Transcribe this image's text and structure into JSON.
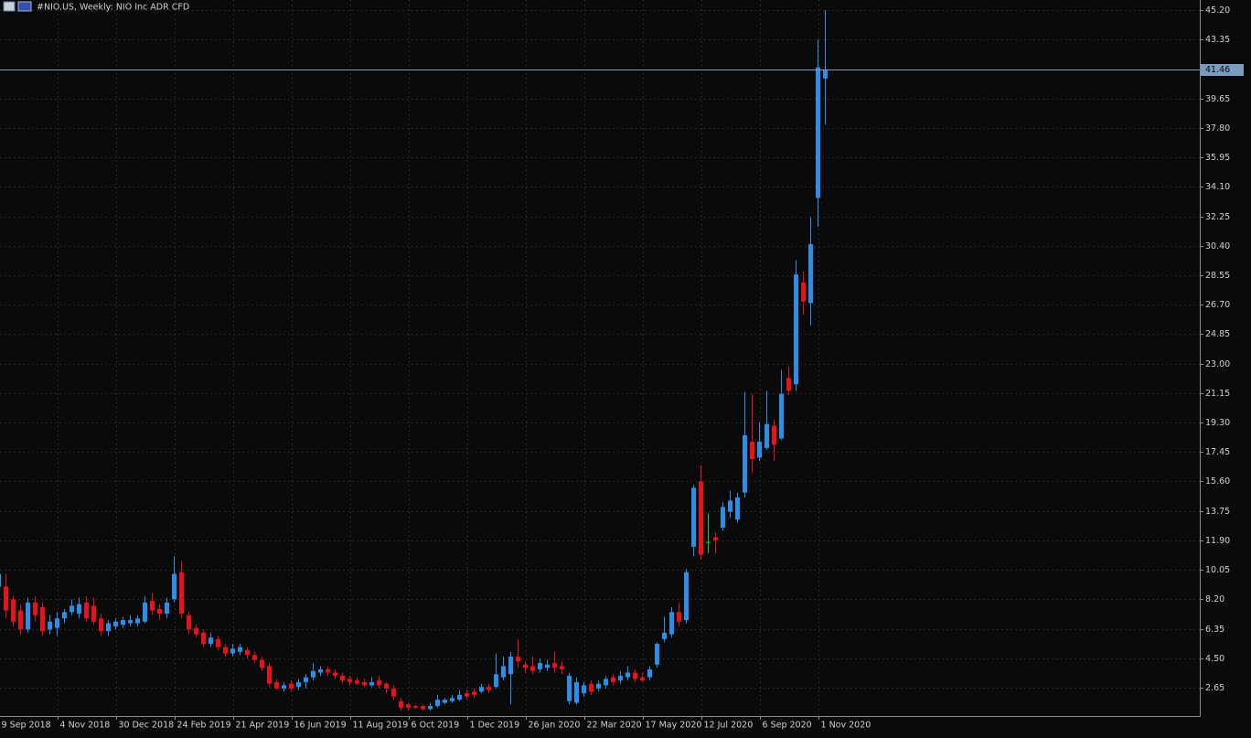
{
  "chart_data": {
    "type": "candlestick",
    "title": "#NIO.US, Weekly:  NIO Inc ADR CFD",
    "categories": [
      "9 Sep 2018",
      null,
      null,
      null,
      null,
      null,
      null,
      null,
      "4 Nov 2018",
      null,
      null,
      null,
      null,
      null,
      null,
      null,
      "30 Dec 2018",
      null,
      null,
      null,
      null,
      null,
      null,
      null,
      "24 Feb 2019",
      null,
      null,
      null,
      null,
      null,
      null,
      null,
      "21 Apr 2019",
      null,
      null,
      null,
      null,
      null,
      null,
      null,
      "16 Jun 2019",
      null,
      null,
      null,
      null,
      null,
      null,
      null,
      "11 Aug 2019",
      null,
      null,
      null,
      null,
      null,
      null,
      null,
      "6 Oct 2019",
      null,
      null,
      null,
      null,
      null,
      null,
      null,
      "1 Dec 2019",
      null,
      null,
      null,
      null,
      null,
      null,
      null,
      "26 Jan 2020",
      null,
      null,
      null,
      null,
      null,
      null,
      null,
      "22 Mar 2020",
      null,
      null,
      null,
      null,
      null,
      null,
      null,
      "17 May 2020",
      null,
      null,
      null,
      null,
      null,
      null,
      null,
      "12 Jul 2020",
      null,
      null,
      null,
      null,
      null,
      null,
      null,
      "6 Sep 2020",
      null,
      null,
      null,
      null,
      null,
      null,
      null,
      "1 Nov 2020",
      null
    ],
    "open": [
      9.0,
      9.0,
      8.2,
      7.5,
      6.3,
      8.0,
      7.7,
      6.3,
      6.4,
      7.0,
      7.4,
      7.3,
      8.0,
      7.8,
      7.0,
      6.2,
      6.5,
      6.6,
      6.7,
      6.7,
      6.8,
      8.1,
      7.6,
      7.3,
      8.2,
      9.9,
      7.2,
      6.4,
      6.1,
      5.4,
      5.7,
      5.2,
      4.8,
      4.9,
      5.0,
      4.7,
      4.4,
      4.0,
      3.0,
      2.6,
      2.9,
      2.7,
      3.0,
      3.3,
      3.6,
      3.8,
      3.6,
      3.4,
      3.2,
      3.1,
      3.0,
      2.8,
      3.1,
      2.9,
      2.6,
      1.8,
      1.6,
      1.5,
      1.5,
      1.3,
      1.5,
      1.7,
      1.8,
      1.9,
      2.3,
      2.4,
      2.4,
      2.7,
      2.7,
      3.3,
      3.5,
      4.6,
      4.1,
      4.0,
      3.8,
      3.9,
      4.2,
      4.0,
      1.8,
      1.7,
      2.3,
      2.9,
      2.6,
      2.8,
      3.3,
      3.1,
      3.3,
      3.6,
      3.3,
      3.3,
      4.1,
      5.7,
      6.0,
      7.4,
      6.9,
      11.5,
      15.6,
      11.8,
      12.1,
      12.7,
      13.7,
      13.2,
      14.9,
      18.1,
      17.1,
      17.7,
      19.1,
      18.3,
      22.1,
      21.7,
      28.1,
      26.8,
      33.4,
      40.9
    ],
    "high": [
      10.0,
      9.8,
      8.4,
      7.9,
      8.3,
      8.4,
      8.0,
      7.2,
      7.4,
      7.6,
      8.2,
      8.3,
      8.4,
      8.3,
      7.3,
      6.9,
      7.0,
      7.1,
      7.2,
      7.2,
      8.4,
      8.6,
      7.9,
      8.3,
      10.9,
      10.6,
      7.4,
      6.6,
      6.3,
      6.1,
      5.9,
      5.4,
      5.4,
      5.4,
      5.2,
      4.9,
      4.6,
      4.2,
      3.2,
      3.0,
      3.1,
      3.2,
      3.5,
      4.2,
      4.0,
      4.0,
      3.8,
      3.6,
      3.4,
      3.3,
      3.2,
      3.3,
      3.4,
      3.0,
      2.8,
      2.0,
      1.7,
      1.6,
      1.6,
      1.7,
      2.2,
      2.0,
      2.2,
      2.5,
      2.5,
      2.6,
      2.9,
      2.9,
      4.8,
      4.6,
      4.9,
      5.7,
      4.3,
      4.6,
      4.5,
      4.4,
      4.9,
      4.3,
      3.6,
      3.3,
      3.0,
      3.1,
      3.1,
      3.4,
      3.5,
      3.7,
      4.0,
      3.8,
      3.6,
      4.0,
      5.5,
      7.1,
      7.7,
      8.0,
      10.1,
      15.4,
      16.6,
      13.6,
      12.4,
      14.3,
      15.0,
      14.9,
      21.2,
      21.1,
      19.3,
      21.3,
      19.5,
      22.6,
      22.8,
      29.5,
      28.8,
      32.2,
      43.35,
      45.2
    ],
    "low": [
      8.0,
      7.0,
      6.5,
      6.0,
      6.1,
      6.8,
      5.9,
      6.0,
      5.9,
      6.7,
      7.2,
      7.0,
      6.8,
      6.6,
      5.9,
      5.9,
      6.3,
      6.4,
      6.5,
      6.5,
      6.7,
      7.2,
      6.9,
      7.0,
      8.0,
      7.0,
      6.0,
      5.8,
      5.2,
      5.2,
      5.0,
      4.6,
      4.6,
      4.7,
      4.5,
      4.2,
      3.7,
      2.7,
      2.5,
      2.4,
      2.4,
      2.5,
      2.6,
      3.1,
      3.4,
      3.4,
      3.2,
      2.9,
      2.8,
      2.8,
      2.7,
      2.7,
      2.6,
      2.3,
      1.9,
      1.2,
      1.2,
      1.3,
      1.2,
      1.2,
      1.4,
      1.6,
      1.7,
      1.8,
      1.9,
      2.0,
      2.3,
      2.3,
      2.6,
      3.1,
      1.6,
      3.9,
      3.6,
      3.5,
      3.6,
      3.7,
      3.6,
      3.5,
      1.6,
      1.6,
      2.1,
      2.2,
      2.4,
      2.6,
      2.8,
      2.9,
      3.1,
      3.0,
      3.0,
      3.1,
      3.9,
      5.5,
      5.8,
      6.5,
      6.7,
      10.9,
      10.7,
      11.1,
      11.1,
      12.5,
      13.3,
      13.0,
      14.6,
      16.1,
      16.9,
      17.6,
      16.9,
      18.2,
      21.0,
      21.3,
      26.1,
      25.4,
      31.6,
      38.0
    ],
    "close": [
      9.8,
      7.5,
      6.8,
      6.3,
      8.0,
      7.2,
      6.2,
      6.8,
      7.0,
      7.4,
      7.8,
      7.9,
      7.0,
      6.8,
      6.2,
      6.7,
      6.8,
      6.9,
      6.9,
      7.0,
      8.0,
      7.5,
      7.3,
      8.0,
      9.8,
      7.3,
      6.3,
      6.0,
      5.4,
      5.8,
      5.2,
      4.8,
      5.1,
      5.2,
      4.7,
      4.4,
      3.9,
      2.9,
      2.6,
      2.8,
      2.6,
      3.0,
      3.3,
      3.7,
      3.8,
      3.6,
      3.4,
      3.1,
      3.0,
      2.9,
      2.8,
      3.0,
      2.8,
      2.6,
      2.1,
      1.4,
      1.4,
      1.4,
      1.3,
      1.5,
      1.9,
      1.9,
      2.0,
      2.2,
      2.1,
      2.2,
      2.7,
      2.5,
      3.5,
      4.0,
      4.6,
      4.3,
      3.9,
      3.7,
      4.2,
      4.1,
      3.9,
      3.8,
      3.4,
      3.0,
      2.8,
      2.4,
      2.9,
      3.2,
      3.0,
      3.4,
      3.6,
      3.2,
      3.1,
      3.8,
      5.4,
      6.1,
      7.4,
      6.8,
      9.9,
      15.2,
      11.0,
      11.8,
      11.9,
      14.0,
      14.4,
      14.6,
      18.5,
      17.0,
      18.1,
      19.2,
      17.9,
      21.1,
      21.3,
      28.6,
      26.9,
      30.5,
      41.6,
      41.46
    ],
    "up_color": "#2e8de6",
    "down_color": "#e8121c",
    "doji_color": "#22c832",
    "price_line": 41.46,
    "price_line_color": "#7a9cc0",
    "ylim": [
      0.87,
      45.83
    ],
    "yticks": [
      2.65,
      {
        "value": 4.5,
        "label": "4.50"
      },
      6.35,
      {
        "value": 8.2,
        "label": "8.20"
      },
      10.05,
      {
        "value": 11.9,
        "label": "11.90"
      },
      13.75,
      {
        "value": 15.6,
        "label": "15.60"
      },
      17.45,
      {
        "value": 19.3,
        "label": "19.30"
      },
      21.15,
      {
        "value": 23,
        "label": "23.00"
      },
      24.85,
      {
        "value": 26.7,
        "label": "26.70"
      },
      28.55,
      {
        "value": 30.4,
        "label": "30.40"
      },
      32.25,
      {
        "value": 34.1,
        "label": "34.10"
      },
      35.95,
      {
        "value": 37.8,
        "label": "37.80"
      },
      39.65,
      43.35,
      {
        "value": 45.2,
        "label": "45.20"
      }
    ],
    "grid": true
  }
}
